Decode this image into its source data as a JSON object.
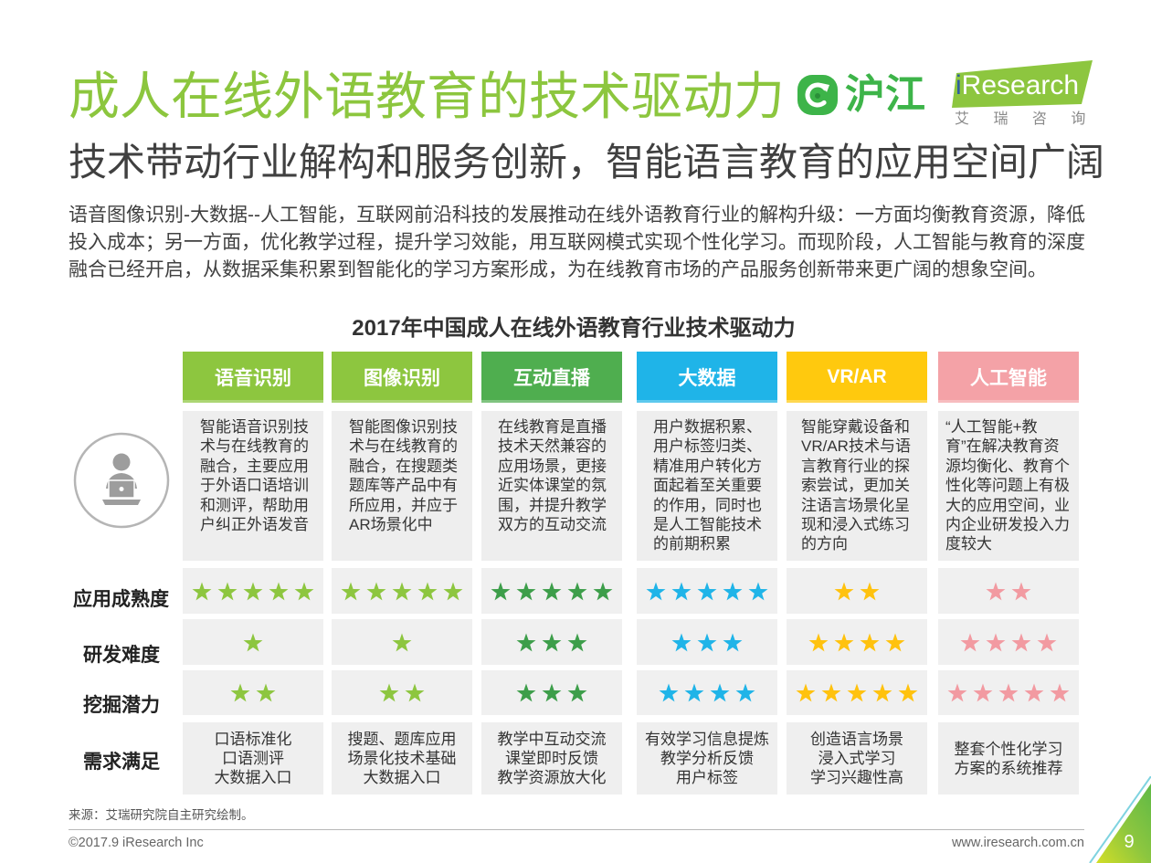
{
  "theme": {
    "title_color": "#8cc63e",
    "hujiang_green": "#3db449",
    "iresearch_green": "#8dc63f"
  },
  "header": {
    "title": "成人在线外语教育的技术驱动力",
    "subtitle": "技术带动行业解构和服务创新，智能语言教育的应用空间广阔",
    "intro_lines": [
      "语音图像识别-大数据--人工智能，互联网前沿科技的发展推动在线外语教育行业的解构升级：一方面均衡教育资源，降低",
      "投入成本；另一方面，优化教学过程，提升学习效能，用互联网模式实现个性化学习。而现阶段，人工智能与教育的深度",
      "融合已经开启，从数据采集积累到智能化的学习方案形成，为在线教育市场的产品服务创新带来更广阔的想象空间。"
    ]
  },
  "logos": {
    "hujiang": "沪江",
    "iresearch": "iResearch",
    "iresearch_cn": "艾 瑞 咨 询"
  },
  "icons": {
    "badge": "user-laptop-icon",
    "rating": "star-icon"
  },
  "table": {
    "title": "2017年中国成人在线外语教育行业技术驱动力",
    "row_labels": {
      "maturity": "应用成熟度",
      "difficulty": "研发难度",
      "potential": "挖掘潜力",
      "demand": "需求满足"
    },
    "columns": [
      {
        "header": "语音识别",
        "header_color": "#8dc63f",
        "star_color": "#8dc63f",
        "description_lines": [
          "智能语音识别技",
          "术与在线教育的",
          "融合，主要应用",
          "于外语口语培训",
          "和测评，帮助用",
          "户纠正外语发音"
        ],
        "maturity_stars": 5,
        "difficulty_stars": 1,
        "potential_stars": 2,
        "demand_lines": [
          "口语标准化",
          "口语测评",
          "大数据入口"
        ]
      },
      {
        "header": "图像识别",
        "header_color": "#8dc63f",
        "star_color": "#8dc63f",
        "description_lines": [
          "智能图像识别技",
          "术与在线教育的",
          "融合，在搜题类",
          "题库等产品中有",
          "所应用，并应于",
          "AR场景化中"
        ],
        "maturity_stars": 5,
        "difficulty_stars": 1,
        "potential_stars": 2,
        "demand_lines": [
          "搜题、题库应用",
          "场景化技术基础",
          "大数据入口"
        ]
      },
      {
        "header": "互动直播",
        "header_color": "#4fae4f",
        "star_color": "#3d9e4a",
        "description_lines": [
          "在线教育是直播",
          "技术天然兼容的",
          "应用场景，更接",
          "近实体课堂的氛",
          "围，并提升教学",
          "双方的互动交流"
        ],
        "maturity_stars": 5,
        "difficulty_stars": 3,
        "potential_stars": 3,
        "demand_lines": [
          "教学中互动交流",
          "课堂即时反馈",
          "教学资源放大化"
        ]
      },
      {
        "header": "大数据",
        "header_color": "#1fb4e8",
        "star_color": "#1fb4e8",
        "description_lines": [
          "用户数据积累、",
          "用户标签归类、",
          "精准用户转化方",
          "面起着至关重要",
          "的作用，同时也",
          "是人工智能技术",
          "的前期积累"
        ],
        "maturity_stars": 5,
        "difficulty_stars": 3,
        "potential_stars": 4,
        "demand_lines": [
          "有效学习信息提炼",
          "教学分析反馈",
          "用户标签"
        ]
      },
      {
        "header": "VR/AR",
        "header_color": "#ffc90e",
        "star_color": "#ffc20e",
        "description_lines": [
          "智能穿戴设备和",
          "VR/AR技术与语",
          "言教育行业的探",
          "索尝试，更加关",
          "注语言场景化呈",
          "现和浸入式练习",
          "的方向"
        ],
        "maturity_stars": 2,
        "difficulty_stars": 4,
        "potential_stars": 5,
        "demand_lines": [
          "创造语言场景",
          "浸入式学习",
          "学习兴趣性高"
        ]
      },
      {
        "header": "人工智能",
        "header_color": "#f4a2a7",
        "star_color": "#f29aa1",
        "description_lines": [
          "“人工智能+教",
          "育”在解决教育资",
          "源均衡化、教育个",
          "性化等问题上有极",
          "大的应用空间，业",
          "内企业研发投入力",
          "度较大"
        ],
        "maturity_stars": 2,
        "difficulty_stars": 4,
        "potential_stars": 5,
        "demand_lines": [
          "整套个性化学习",
          "方案的系统推荐"
        ]
      }
    ]
  },
  "source": "来源：艾瑞研究院自主研究绘制。",
  "footer": {
    "copyright": "©2017.9 iResearch Inc",
    "website": "www.iresearch.com.cn",
    "page_number": "9"
  }
}
